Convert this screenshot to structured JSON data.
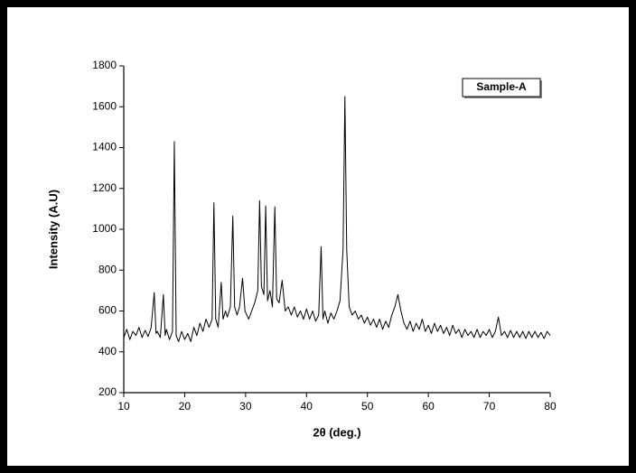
{
  "chart_data": {
    "type": "line",
    "xlabel": "2θ (deg.)",
    "ylabel": "Intensity (A.U)",
    "xlim": [
      10,
      80
    ],
    "xticks": [
      10,
      20,
      30,
      40,
      50,
      60,
      70,
      80
    ],
    "ylim": [
      200,
      1800
    ],
    "yticks": [
      200,
      400,
      600,
      800,
      1000,
      1200,
      1400,
      1600,
      1800
    ],
    "legend": "upper right",
    "x": [
      10,
      10.5,
      11,
      11.5,
      12,
      12.5,
      13,
      13.5,
      14,
      14.5,
      15,
      15.3,
      15.5,
      16,
      16.5,
      16.8,
      17,
      17.5,
      18,
      18.3,
      18.6,
      19,
      19.5,
      20,
      20.5,
      21,
      21.5,
      22,
      22.5,
      23,
      23.5,
      24,
      24.5,
      24.8,
      25.1,
      25.5,
      26,
      26.3,
      26.7,
      27,
      27.5,
      27.9,
      28.2,
      28.6,
      29,
      29.5,
      29.9,
      30.5,
      31,
      31.5,
      32,
      32.3,
      32.6,
      33,
      33.3,
      33.6,
      34,
      34.4,
      34.8,
      35.1,
      35.5,
      36,
      36.5,
      37,
      37.5,
      38,
      38.5,
      39,
      39.5,
      40,
      40.5,
      41,
      41.5,
      42,
      42.4,
      42.7,
      43,
      43.5,
      44,
      44.5,
      45,
      45.5,
      46,
      46.3,
      46.6,
      47,
      47.5,
      48,
      48.5,
      49,
      49.5,
      50,
      50.5,
      51,
      51.5,
      52,
      52.5,
      53,
      53.5,
      54,
      54.5,
      55,
      55.5,
      56,
      56.5,
      57,
      57.5,
      58,
      58.5,
      59,
      59.5,
      60,
      60.5,
      61,
      61.5,
      62,
      62.5,
      63,
      63.5,
      64,
      64.5,
      65,
      65.5,
      66,
      66.5,
      67,
      67.5,
      68,
      68.5,
      69,
      69.5,
      70,
      70.5,
      71,
      71.5,
      72,
      72.5,
      73,
      73.5,
      74,
      74.5,
      75,
      75.5,
      76,
      76.5,
      77,
      77.5,
      78,
      78.5,
      79,
      79.5,
      80
    ],
    "series": [
      {
        "name": "Sample-A",
        "color": "#000000",
        "values": [
          470,
          510,
          460,
          500,
          480,
          520,
          470,
          505,
          475,
          520,
          690,
          490,
          500,
          470,
          680,
          480,
          510,
          460,
          500,
          1430,
          480,
          450,
          500,
          460,
          490,
          450,
          520,
          480,
          540,
          500,
          560,
          520,
          560,
          1130,
          560,
          520,
          740,
          560,
          600,
          570,
          620,
          1065,
          620,
          580,
          620,
          760,
          600,
          560,
          600,
          640,
          700,
          1140,
          720,
          680,
          1115,
          650,
          700,
          620,
          1110,
          660,
          640,
          750,
          600,
          620,
          580,
          620,
          570,
          600,
          560,
          610,
          560,
          600,
          550,
          580,
          915,
          560,
          600,
          540,
          590,
          560,
          600,
          650,
          900,
          1650,
          900,
          620,
          580,
          600,
          560,
          580,
          540,
          570,
          530,
          560,
          520,
          560,
          510,
          550,
          520,
          580,
          620,
          680,
          600,
          540,
          510,
          550,
          500,
          540,
          510,
          560,
          500,
          530,
          490,
          540,
          500,
          530,
          490,
          520,
          480,
          530,
          490,
          510,
          470,
          510,
          480,
          500,
          470,
          510,
          470,
          500,
          480,
          510,
          470,
          500,
          570,
          480,
          500,
          470,
          505,
          470,
          500,
          470,
          500,
          465,
          500,
          470,
          500,
          470,
          495,
          465,
          500,
          480
        ]
      }
    ]
  }
}
